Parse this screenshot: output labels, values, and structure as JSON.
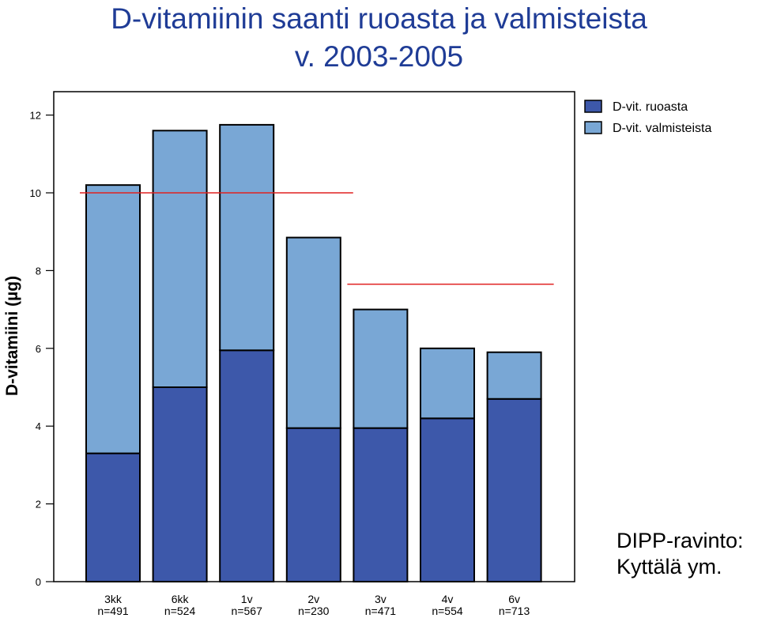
{
  "title_line1": "D-vitamiinin saanti ruoasta ja valmisteista",
  "title_line2": "v. 2003-2005",
  "source_line1": "DIPP-ravinto:",
  "source_line2": "Kyttälä ym.",
  "chart_data": {
    "type": "bar",
    "stacked": true,
    "categories": [
      "3kk",
      "6kk",
      "1v",
      "2v",
      "3v",
      "4v",
      "6v"
    ],
    "category_counts": [
      "n=491",
      "n=524",
      "n=567",
      "n=230",
      "n=471",
      "n=554",
      "n=713"
    ],
    "series": [
      {
        "name": "D-vit. ruoasta",
        "color": "#3d58aa",
        "values": [
          3.3,
          5.0,
          5.95,
          3.95,
          3.95,
          4.2,
          4.7
        ]
      },
      {
        "name": "D-vit. valmisteista",
        "color": "#79a7d5",
        "values": [
          6.9,
          6.6,
          5.8,
          4.9,
          3.05,
          1.8,
          1.2
        ]
      }
    ],
    "reference_lines": [
      {
        "value": 10.0,
        "from_category": "3kk",
        "to_category": "2v",
        "color": "#e02020"
      },
      {
        "value": 7.65,
        "from_category": "3v",
        "to_category": "6v",
        "color": "#e02020"
      }
    ],
    "ylabel": "D-vitamiini (µg)",
    "xlabel": "",
    "ylim": [
      0,
      12.6
    ],
    "yticks": [
      0,
      2,
      4,
      6,
      8,
      10,
      12
    ],
    "legend_position": "top-right",
    "grid": false
  }
}
